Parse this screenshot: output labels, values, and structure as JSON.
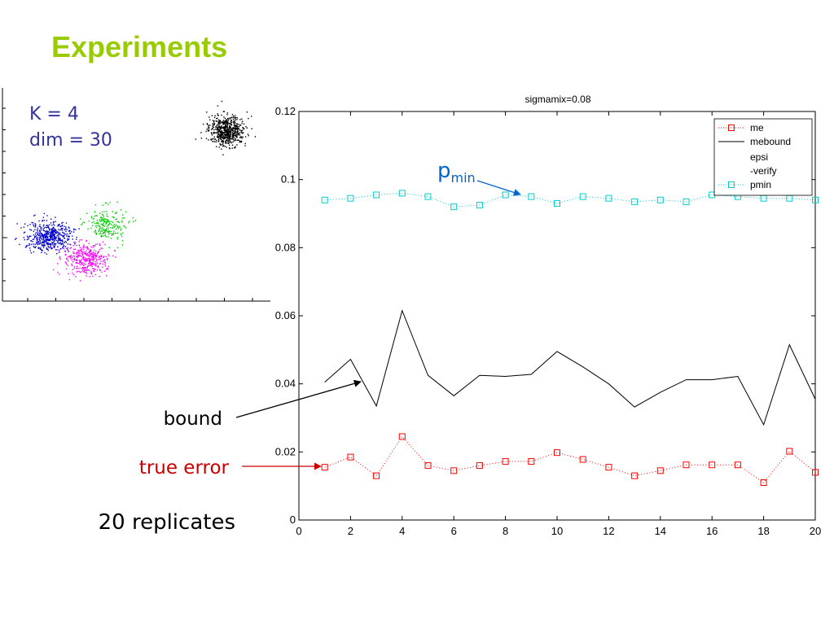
{
  "slide": {
    "title": "Experiments",
    "title_color": "#99CC00"
  },
  "inset": {
    "k_label": "K = 4",
    "dim_label": "dim = 30",
    "text_color": "#333399",
    "cluster_colors": [
      "#000000",
      "#0000cc",
      "#00cc00",
      "#ff00ff"
    ]
  },
  "annotations": {
    "bound": "bound",
    "true_error": "true error",
    "replicates": "20 replicates",
    "pmin_base": "p",
    "pmin_sub": "min",
    "true_error_color": "#cc0000",
    "pmin_color": "#0066cc"
  },
  "chart_data": {
    "type": "line",
    "title": "sigmamix=0.08",
    "xlabel": "",
    "ylabel": "",
    "xlim": [
      0,
      20
    ],
    "ylim": [
      0,
      0.12
    ],
    "xticks": [
      0,
      2,
      4,
      6,
      8,
      10,
      12,
      14,
      16,
      18,
      20
    ],
    "yticks": [
      0,
      0.02,
      0.04,
      0.06,
      0.08,
      0.1,
      0.12
    ],
    "ytick_labels": [
      "0",
      "0.02",
      "0.04",
      "0.06",
      "0.08",
      "0.1",
      "0.12"
    ],
    "x": [
      1,
      2,
      3,
      4,
      5,
      6,
      7,
      8,
      9,
      10,
      11,
      12,
      13,
      14,
      15,
      16,
      17,
      18,
      19,
      20
    ],
    "legend_position": "top-right",
    "legend": [
      "me",
      "mebound",
      "epsi",
      "-verify",
      "pmin"
    ],
    "series": [
      {
        "name": "me",
        "color": "#ff0000",
        "style": "dotted-square",
        "values": [
          0.0155,
          0.0185,
          0.013,
          0.0245,
          0.016,
          0.0145,
          0.016,
          0.0172,
          0.0172,
          0.0198,
          0.0178,
          0.0155,
          0.013,
          0.0145,
          0.0162,
          0.0162,
          0.0162,
          0.011,
          0.0202,
          0.014
        ]
      },
      {
        "name": "mebound",
        "color": "#000000",
        "style": "solid",
        "values": [
          0.0405,
          0.0472,
          0.0335,
          0.0615,
          0.0425,
          0.0365,
          0.0425,
          0.0422,
          0.0428,
          0.0495,
          0.045,
          0.04,
          0.0332,
          0.0375,
          0.0412,
          0.0412,
          0.0422,
          0.028,
          0.0515,
          0.0355
        ]
      },
      {
        "name": "pmin",
        "color": "#00cccc",
        "style": "dotted-square",
        "values": [
          0.094,
          0.0945,
          0.0955,
          0.096,
          0.095,
          0.092,
          0.0925,
          0.0955,
          0.095,
          0.093,
          0.095,
          0.0945,
          0.0935,
          0.094,
          0.0935,
          0.0955,
          0.095,
          0.0945,
          0.0945,
          0.094
        ]
      }
    ]
  }
}
